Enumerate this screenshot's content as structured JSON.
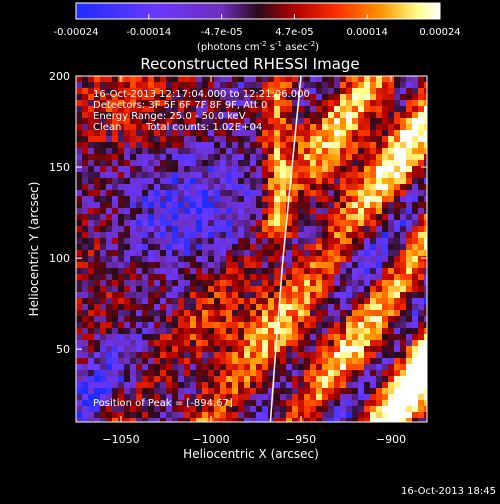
{
  "colorbar": {
    "ticks": [
      "-0.00024",
      "-0.00014",
      "-4.7e-05",
      "4.7e-05",
      "0.00014",
      "0.00024"
    ],
    "unit_parts": [
      "(photons cm",
      "-2",
      " s",
      "-1",
      " asec",
      "-2",
      ")"
    ]
  },
  "title": "Reconstructed RHESSI Image",
  "annotations": {
    "time_range": "16-Oct-2013 12:17:04.000 to 12:21:06.000",
    "detectors": "Detectors: 3F 5F 6F 7F 8F 9F, Att 0",
    "energy": "Energy Range: 25.0 - 50.0 keV",
    "clean": "Clean",
    "total_counts": "Total counts: 1.02E+04",
    "peak": "Position of Peak = [-894,67]"
  },
  "footer_timestamp": "16-Oct-2013 18:45",
  "chart_data": {
    "type": "heatmap",
    "title": "Reconstructed RHESSI Image",
    "xlabel": "Heliocentric X (arcsec)",
    "ylabel": "Heliocentric Y (arcsec)",
    "xlim": [
      -1075,
      -880
    ],
    "ylim": [
      10,
      200
    ],
    "x_ticks": [
      -1050,
      -1000,
      -950,
      -900
    ],
    "y_ticks": [
      50,
      100,
      150,
      200
    ],
    "color_range": [
      -0.00024,
      0.00024
    ],
    "limb_curve": [
      [
        -950,
        200
      ],
      [
        -955,
        150
      ],
      [
        -960,
        100
      ],
      [
        -964,
        50
      ],
      [
        -967,
        10
      ]
    ],
    "colors": {
      "cmap_stops": [
        "#1f2dff",
        "#6a38ff",
        "#6e2fbe",
        "#2a0a1a",
        "#b00000",
        "#ff3200",
        "#ff9600",
        "#ffff8c",
        "#ffffff"
      ],
      "limb": "#ffffff"
    }
  }
}
